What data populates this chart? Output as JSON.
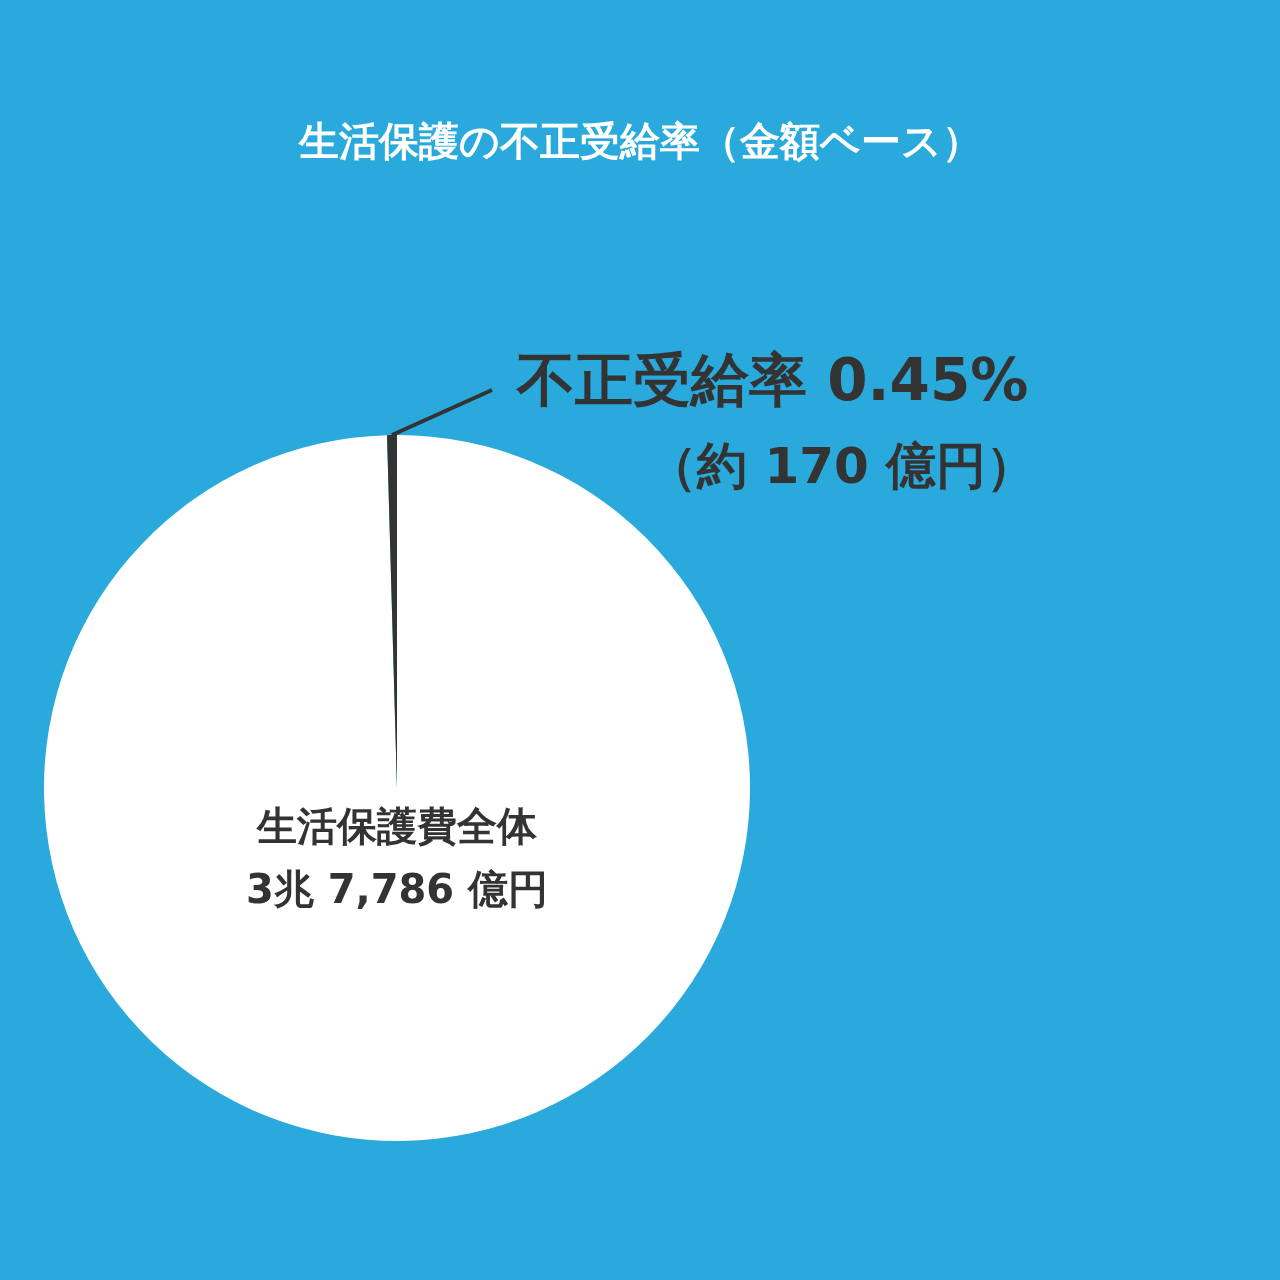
{
  "chart_data": {
    "type": "pie",
    "title": "生活保護の不正受給率（金額ベース）",
    "categories": [
      "生活保護費全体",
      "不正受給率"
    ],
    "values": [
      99.55,
      0.45
    ],
    "colors": [
      "#ffffff",
      "#333333"
    ],
    "value_labels": [
      null,
      "0.45%"
    ],
    "annotations": [
      "3兆 7,786 億円",
      "（約 170 億円）"
    ]
  }
}
